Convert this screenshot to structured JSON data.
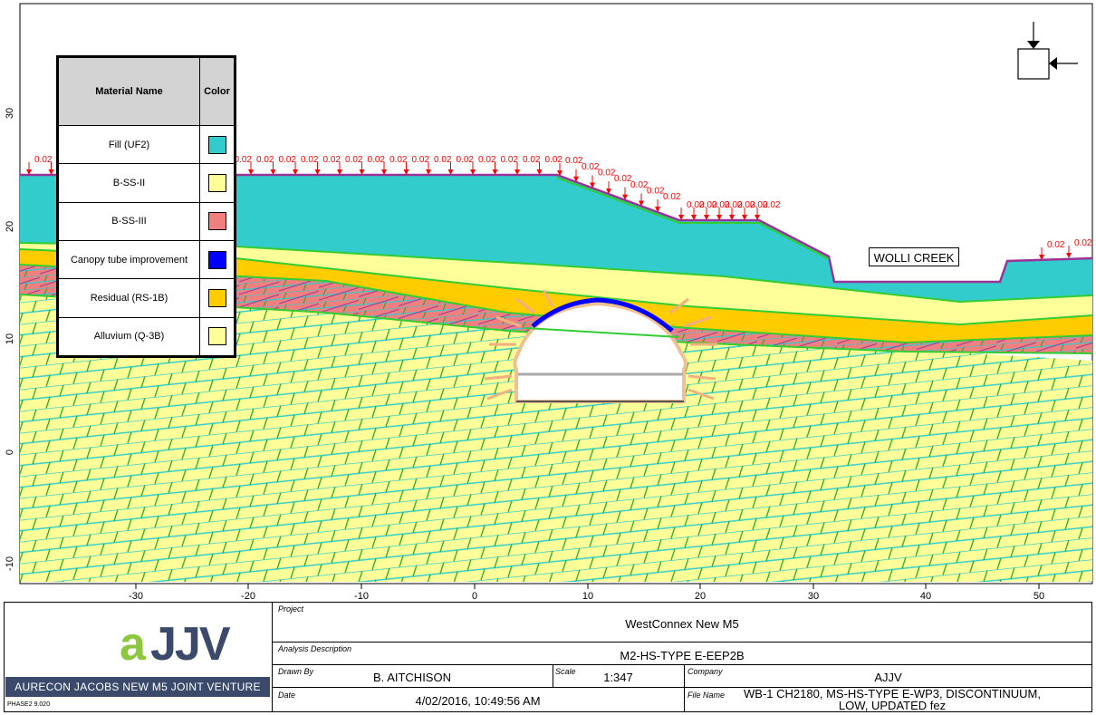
{
  "legend": {
    "header_material": "Material Name",
    "header_color": "Color",
    "items": [
      {
        "name": "Fill (UF2)",
        "color": "#33cccc"
      },
      {
        "name": "B-SS-II",
        "color": "#ffff99"
      },
      {
        "name": "B-SS-III",
        "color": "#f08080"
      },
      {
        "name": "Canopy tube improvement",
        "color": "#0000ff"
      },
      {
        "name": "Residual (RS-1B)",
        "color": "#ffcc00"
      },
      {
        "name": "Alluvium (Q-3B)",
        "color": "#ffff99"
      }
    ]
  },
  "label_wolli": "WOLLI CREEK",
  "axes": {
    "x_ticks": [
      "-30",
      "-20",
      "-10",
      "0",
      "10",
      "20",
      "30",
      "40",
      "50"
    ],
    "y_ticks": [
      "30",
      "20",
      "10",
      "0",
      "-10"
    ]
  },
  "load_label": "0.02",
  "title_block": {
    "project_label": "Project",
    "project_value": "WestConnex New M5",
    "analysis_label": "Analysis Description",
    "analysis_value": "M2-HS-TYPE E-EEP2B",
    "drawn_label": "Drawn By",
    "drawn_value": "B. AITCHISON",
    "scale_label": "Scale",
    "scale_value": "1:347",
    "company_label": "Company",
    "company_value": "AJJV",
    "date_label": "Date",
    "date_value": "4/02/2016, 10:49:56 AM",
    "file_label": "File Name",
    "file_value": "WB-1 CH2180, MS-HS-TYPE E-WP3, DISCONTINUUM, LOW, UPDATED fez",
    "logo_a": "a",
    "logo_jjv": "JJV",
    "jv_name": "AURECON JACOBS NEW M5 JOINT VENTURE",
    "version": "PHASE2 9.020"
  },
  "colors": {
    "fill_uf2": "#33cccc",
    "yellow": "#ffff99",
    "pink": "#f08080",
    "orange": "#ffcc00",
    "green_boundary": "#33cc33",
    "joint": "#22aa22",
    "cyan_joint": "#33cccc",
    "load": "#ff0000",
    "purple": "#993399"
  }
}
